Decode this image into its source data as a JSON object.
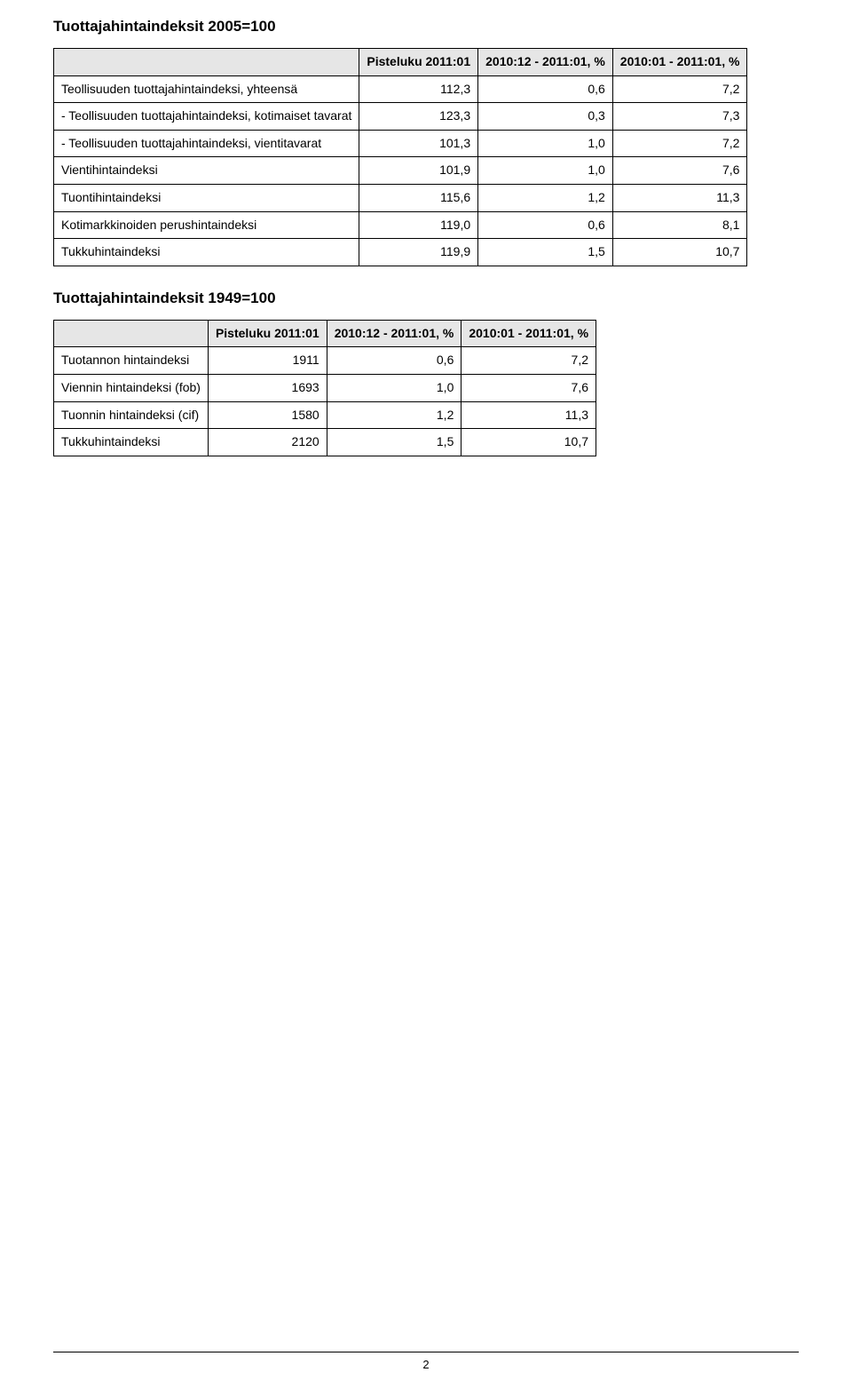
{
  "colors": {
    "header_bg": "#e6e6e6",
    "border": "#000000",
    "background": "#ffffff",
    "text": "#000000"
  },
  "typography": {
    "title_fontsize_pt": 13,
    "body_fontsize_pt": 10,
    "font_family": "Arial"
  },
  "table1": {
    "title": "Tuottajahintaindeksit 2005=100",
    "columns": [
      "",
      "Pisteluku 2011:01",
      "2010:12 - 2011:01, %",
      "2010:01 - 2011:01, %"
    ],
    "rows": [
      {
        "label": "Teollisuuden tuottajahintaindeksi, yhteensä",
        "c1": "112,3",
        "c2": "0,6",
        "c3": "7,2"
      },
      {
        "label": "- Teollisuuden tuottajahintaindeksi, kotimaiset tavarat",
        "c1": "123,3",
        "c2": "0,3",
        "c3": "7,3"
      },
      {
        "label": "- Teollisuuden tuottajahintaindeksi, vientitavarat",
        "c1": "101,3",
        "c2": "1,0",
        "c3": "7,2"
      },
      {
        "label": "Vientihintaindeksi",
        "c1": "101,9",
        "c2": "1,0",
        "c3": "7,6"
      },
      {
        "label": "Tuontihintaindeksi",
        "c1": "115,6",
        "c2": "1,2",
        "c3": "11,3"
      },
      {
        "label": "Kotimarkkinoiden perushintaindeksi",
        "c1": "119,0",
        "c2": "0,6",
        "c3": "8,1"
      },
      {
        "label": "Tukkuhintaindeksi",
        "c1": "119,9",
        "c2": "1,5",
        "c3": "10,7"
      }
    ]
  },
  "table2": {
    "title": "Tuottajahintaindeksit 1949=100",
    "columns": [
      "",
      "Pisteluku 2011:01",
      "2010:12 - 2011:01, %",
      "2010:01 - 2011:01, %"
    ],
    "rows": [
      {
        "label": "Tuotannon hintaindeksi",
        "c1": "1911",
        "c2": "0,6",
        "c3": "7,2"
      },
      {
        "label": "Viennin hintaindeksi (fob)",
        "c1": "1693",
        "c2": "1,0",
        "c3": "7,6"
      },
      {
        "label": "Tuonnin hintaindeksi (cif)",
        "c1": "1580",
        "c2": "1,2",
        "c3": "11,3"
      },
      {
        "label": "Tukkuhintaindeksi",
        "c1": "2120",
        "c2": "1,5",
        "c3": "10,7"
      }
    ]
  },
  "footer": {
    "page_number": "2"
  }
}
